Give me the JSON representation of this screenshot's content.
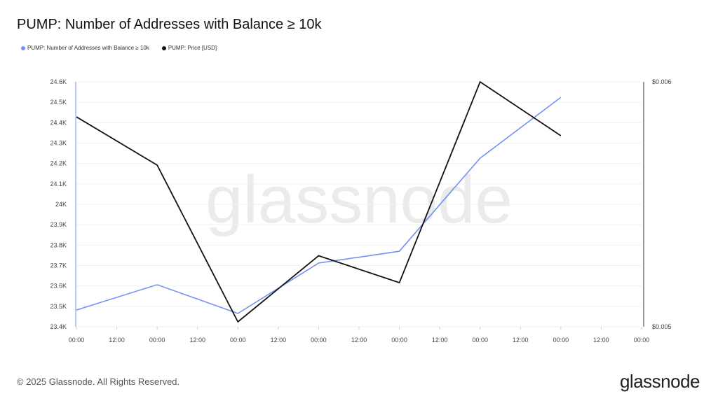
{
  "title": "PUMP: Number of Addresses with Balance ≥ 10k",
  "footer": "© 2025 Glassnode. All Rights Reserved.",
  "logo": "glassnode",
  "watermark": "glassnode",
  "chart_data": {
    "type": "line",
    "title": "PUMP: Number of Addresses with Balance ≥ 10k",
    "x_ticks": [
      "00:00",
      "12:00",
      "00:00",
      "12:00",
      "00:00",
      "12:00",
      "00:00",
      "12:00",
      "00:00",
      "12:00",
      "00:00",
      "12:00",
      "00:00",
      "12:00",
      "00:00"
    ],
    "y_left": {
      "ticks": [
        "23.4K",
        "23.5K",
        "23.6K",
        "23.7K",
        "23.8K",
        "23.9K",
        "24K",
        "24.1K",
        "24.2K",
        "24.3K",
        "24.4K",
        "24.5K",
        "24.6K"
      ],
      "range": [
        23400,
        24600
      ]
    },
    "y_right": {
      "ticks": [
        "$0.005",
        "$0.006"
      ],
      "range": [
        0.005,
        0.006
      ]
    },
    "grid": true,
    "legend_placement": "top-left",
    "series": [
      {
        "name": "PUMP: Number of Addresses with Balance ≥ 10k",
        "axis": "left",
        "color": "#7391f5",
        "x_tick_index": [
          0,
          2,
          4,
          6,
          8,
          10,
          12
        ],
        "values": [
          23482,
          23606,
          23465,
          23712,
          23770,
          24226,
          24524
        ]
      },
      {
        "name": "PUMP: Price [USD]",
        "axis": "right",
        "color": "#111111",
        "x_tick_index": [
          0,
          2,
          4,
          6,
          8,
          10,
          12
        ],
        "values": [
          0.005857,
          0.00566,
          0.00502,
          0.00529,
          0.00518,
          0.006,
          0.00578
        ]
      }
    ]
  }
}
